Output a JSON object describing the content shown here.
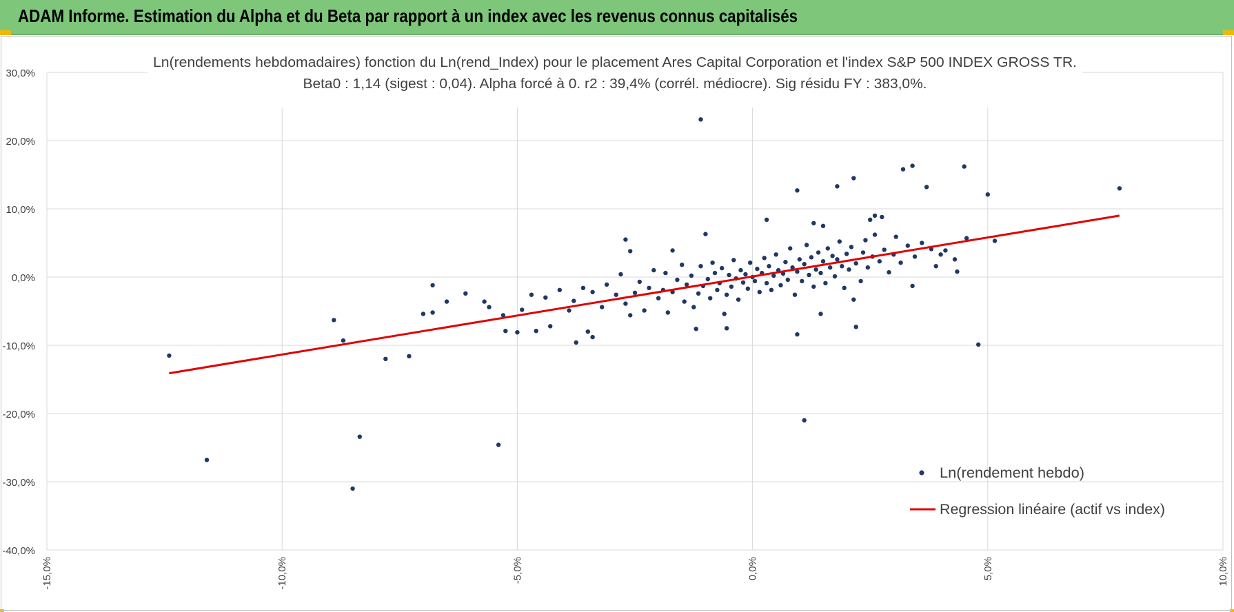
{
  "header": {
    "title": "ADAM Informe. Estimation du Alpha et du Beta par rapport à un index avec les revenus connus capitalisés"
  },
  "colors": {
    "header_bg": "#7dc67a",
    "points": "#1f3864",
    "regression": "#e00000",
    "grid": "#d9d9d9",
    "accent": "#f2b705"
  },
  "chart_data": {
    "type": "scatter",
    "title": "Ln(rendements hebdomadaires) fonction du Ln(rend_Index) pour le placement Ares Capital Corporation et l'index S&P 500 INDEX GROSS TR.",
    "subtitle": "Beta0 : 1,14 (sigest : 0,04). Alpha forcé à 0. r2 : 39,4% (corrél. médiocre). Sig résidu FY : 383,0%.",
    "xlim": [
      -15,
      10
    ],
    "ylim": [
      -40,
      30
    ],
    "x_ticks": [
      {
        "value": -15,
        "label": "-15,0%"
      },
      {
        "value": -10,
        "label": "-10,0%"
      },
      {
        "value": -5,
        "label": "-5,0%"
      },
      {
        "value": 0,
        "label": "0,0%"
      },
      {
        "value": 5,
        "label": "5,0%"
      },
      {
        "value": 10,
        "label": "10,0%"
      }
    ],
    "y_ticks": [
      {
        "value": 30,
        "label": "30,0%"
      },
      {
        "value": 20,
        "label": "20,0%"
      },
      {
        "value": 10,
        "label": "10,0%"
      },
      {
        "value": 0,
        "label": "0,0%"
      },
      {
        "value": -10,
        "label": "-10,0%"
      },
      {
        "value": -20,
        "label": "-20,0%"
      },
      {
        "value": -30,
        "label": "-30,0%"
      },
      {
        "value": -40,
        "label": "-40,0%"
      }
    ],
    "grid": true,
    "legend_position": "bottom-right",
    "series": [
      {
        "name": "Ln(rendement hebdo)",
        "kind": "scatter",
        "points": [
          [
            -12.4,
            -11.5
          ],
          [
            -11.6,
            -26.8
          ],
          [
            -8.9,
            -6.3
          ],
          [
            -8.7,
            -9.3
          ],
          [
            -8.5,
            -31.0
          ],
          [
            -8.35,
            -23.4
          ],
          [
            -7.8,
            -12.0
          ],
          [
            -7.3,
            -11.6
          ],
          [
            -7.0,
            -5.4
          ],
          [
            -6.8,
            -5.2
          ],
          [
            -6.8,
            -1.2
          ],
          [
            -5.7,
            -3.6
          ],
          [
            -5.4,
            -24.6
          ],
          [
            -5.25,
            -7.9
          ],
          [
            -5.0,
            -8.1
          ],
          [
            -4.6,
            -7.9
          ],
          [
            -4.3,
            -7.2
          ],
          [
            -3.75,
            -9.6
          ],
          [
            -3.5,
            -8.0
          ],
          [
            -3.4,
            -8.8
          ],
          [
            -2.7,
            5.5
          ],
          [
            -2.6,
            3.8
          ],
          [
            -1.7,
            3.9
          ],
          [
            -1.2,
            -7.6
          ],
          [
            -1.1,
            23.1
          ],
          [
            -1.0,
            6.3
          ],
          [
            -0.55,
            -7.5
          ],
          [
            0.3,
            8.4
          ],
          [
            0.95,
            12.7
          ],
          [
            0.95,
            -8.4
          ],
          [
            1.1,
            -21.0
          ],
          [
            1.3,
            7.9
          ],
          [
            1.45,
            -5.4
          ],
          [
            1.5,
            7.5
          ],
          [
            1.8,
            13.3
          ],
          [
            2.15,
            14.5
          ],
          [
            2.2,
            -7.3
          ],
          [
            2.15,
            -3.3
          ],
          [
            2.5,
            8.4
          ],
          [
            2.6,
            9.0
          ],
          [
            2.75,
            8.8
          ],
          [
            3.2,
            15.8
          ],
          [
            3.4,
            16.3
          ],
          [
            3.4,
            -1.3
          ],
          [
            3.7,
            13.2
          ],
          [
            4.3,
            2.6
          ],
          [
            4.35,
            0.8
          ],
          [
            4.5,
            16.2
          ],
          [
            4.8,
            -9.9
          ],
          [
            5.0,
            12.1
          ],
          [
            5.15,
            5.3
          ],
          [
            7.8,
            13.0
          ],
          [
            -6.5,
            -3.6
          ],
          [
            -6.1,
            -2.4
          ],
          [
            -5.6,
            -4.4
          ],
          [
            -5.3,
            -5.6
          ],
          [
            -4.9,
            -4.8
          ],
          [
            -4.7,
            -2.6
          ],
          [
            -4.4,
            -3.0
          ],
          [
            -4.1,
            -1.9
          ],
          [
            -3.9,
            -4.9
          ],
          [
            -3.8,
            -3.5
          ],
          [
            -3.6,
            -1.6
          ],
          [
            -3.4,
            -2.2
          ],
          [
            -3.2,
            -4.4
          ],
          [
            -3.1,
            -1.1
          ],
          [
            -2.9,
            -2.6
          ],
          [
            -2.8,
            0.4
          ],
          [
            -2.7,
            -3.9
          ],
          [
            -2.6,
            -5.6
          ],
          [
            -2.5,
            -2.3
          ],
          [
            -2.4,
            -0.7
          ],
          [
            -2.3,
            -4.9
          ],
          [
            -2.2,
            -1.6
          ],
          [
            -2.1,
            1.0
          ],
          [
            -2.0,
            -3.1
          ],
          [
            -1.9,
            -1.9
          ],
          [
            -1.85,
            0.6
          ],
          [
            -1.8,
            -5.2
          ],
          [
            -1.7,
            -2.2
          ],
          [
            -1.6,
            -0.4
          ],
          [
            -1.5,
            1.8
          ],
          [
            -1.45,
            -3.6
          ],
          [
            -1.4,
            -1.1
          ],
          [
            -1.3,
            0.2
          ],
          [
            -1.25,
            -4.4
          ],
          [
            -1.15,
            -2.4
          ],
          [
            -1.1,
            1.6
          ],
          [
            -1.05,
            -1.3
          ],
          [
            -0.95,
            -0.3
          ],
          [
            -0.9,
            -3.1
          ],
          [
            -0.85,
            2.1
          ],
          [
            -0.8,
            0.6
          ],
          [
            -0.75,
            -1.9
          ],
          [
            -0.7,
            -0.9
          ],
          [
            -0.65,
            1.3
          ],
          [
            -0.6,
            -5.4
          ],
          [
            -0.55,
            -2.6
          ],
          [
            -0.5,
            0.3
          ],
          [
            -0.45,
            -1.4
          ],
          [
            -0.4,
            2.5
          ],
          [
            -0.35,
            -0.2
          ],
          [
            -0.3,
            -3.3
          ],
          [
            -0.25,
            1.0
          ],
          [
            -0.2,
            -0.8
          ],
          [
            -0.15,
            0.4
          ],
          [
            -0.1,
            -1.7
          ],
          [
            -0.05,
            2.1
          ],
          [
            0.0,
            0.0
          ],
          [
            0.05,
            -0.6
          ],
          [
            0.1,
            1.2
          ],
          [
            0.15,
            -2.2
          ],
          [
            0.2,
            0.6
          ],
          [
            0.25,
            2.8
          ],
          [
            0.3,
            -0.9
          ],
          [
            0.35,
            1.6
          ],
          [
            0.4,
            -1.9
          ],
          [
            0.45,
            0.2
          ],
          [
            0.5,
            3.3
          ],
          [
            0.55,
            1.0
          ],
          [
            0.6,
            -1.2
          ],
          [
            0.65,
            0.5
          ],
          [
            0.7,
            2.2
          ],
          [
            0.75,
            -0.4
          ],
          [
            0.8,
            4.2
          ],
          [
            0.85,
            1.4
          ],
          [
            0.9,
            -2.6
          ],
          [
            0.95,
            0.8
          ],
          [
            1.0,
            2.6
          ],
          [
            1.05,
            -0.6
          ],
          [
            1.1,
            1.9
          ],
          [
            1.15,
            4.7
          ],
          [
            1.2,
            0.3
          ],
          [
            1.25,
            2.9
          ],
          [
            1.3,
            -1.4
          ],
          [
            1.35,
            1.1
          ],
          [
            1.4,
            3.6
          ],
          [
            1.45,
            0.6
          ],
          [
            1.5,
            2.3
          ],
          [
            1.55,
            -0.9
          ],
          [
            1.6,
            4.2
          ],
          [
            1.65,
            1.4
          ],
          [
            1.7,
            3.1
          ],
          [
            1.75,
            0.1
          ],
          [
            1.8,
            2.6
          ],
          [
            1.85,
            5.2
          ],
          [
            1.9,
            1.6
          ],
          [
            1.95,
            -1.6
          ],
          [
            2.0,
            3.4
          ],
          [
            2.05,
            1.1
          ],
          [
            2.1,
            4.4
          ],
          [
            2.2,
            2.0
          ],
          [
            2.3,
            -0.6
          ],
          [
            2.35,
            3.6
          ],
          [
            2.4,
            5.4
          ],
          [
            2.45,
            1.4
          ],
          [
            2.55,
            3.0
          ],
          [
            2.6,
            6.2
          ],
          [
            2.7,
            2.3
          ],
          [
            2.8,
            4.0
          ],
          [
            2.9,
            0.7
          ],
          [
            3.0,
            3.3
          ],
          [
            3.05,
            5.9
          ],
          [
            3.15,
            2.1
          ],
          [
            3.3,
            4.6
          ],
          [
            3.45,
            3.0
          ],
          [
            3.6,
            5.0
          ],
          [
            3.8,
            4.1
          ],
          [
            4.0,
            3.3
          ],
          [
            4.1,
            3.9
          ],
          [
            4.55,
            5.7
          ],
          [
            3.9,
            1.6
          ]
        ]
      },
      {
        "name": "Regression linéaire (actif vs index)",
        "kind": "line",
        "points": [
          [
            -12.4,
            -14.1
          ],
          [
            7.8,
            9.0
          ]
        ]
      }
    ]
  }
}
